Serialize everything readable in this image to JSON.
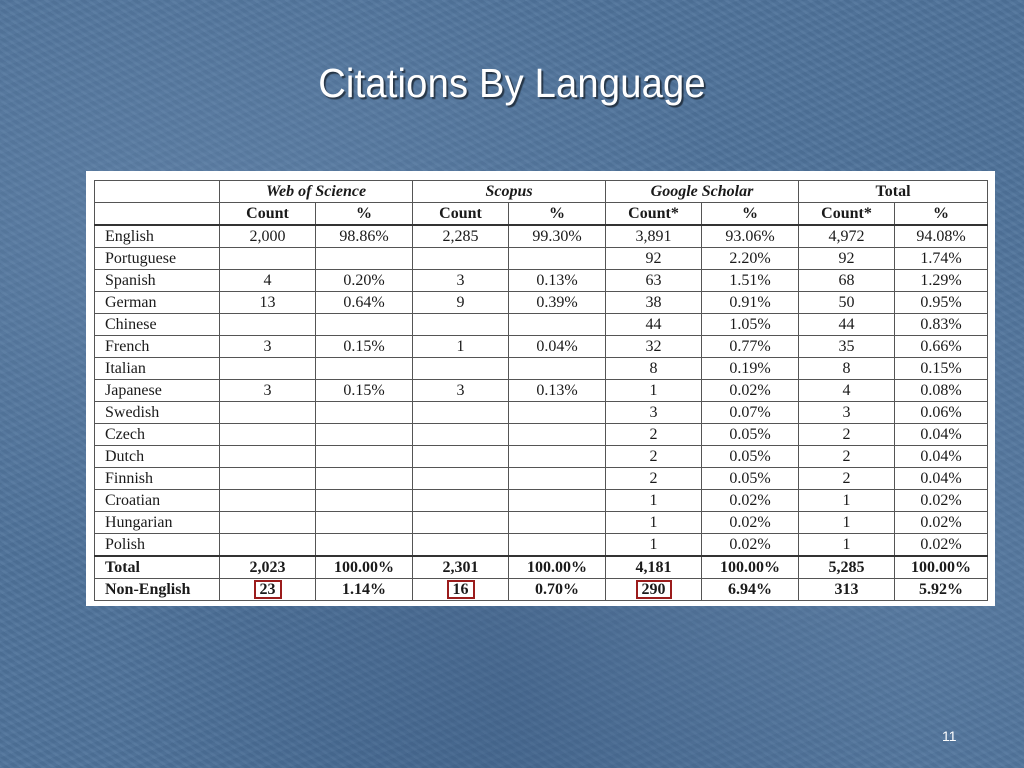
{
  "slide": {
    "title": "Citations By Language",
    "number": "11"
  },
  "table": {
    "groups": [
      "Web of Science",
      "Scopus",
      "Google Scholar",
      "Total"
    ],
    "subheaders": [
      "Count",
      "%",
      "Count",
      "%",
      "Count*",
      "%",
      "Count*",
      "%"
    ],
    "rows": [
      {
        "language": "English",
        "values": [
          "2,000",
          "98.86%",
          "2,285",
          "99.30%",
          "3,891",
          "93.06%",
          "4,972",
          "94.08%"
        ]
      },
      {
        "language": "Portuguese",
        "values": [
          "",
          "",
          "",
          "",
          "92",
          "2.20%",
          "92",
          "1.74%"
        ]
      },
      {
        "language": "Spanish",
        "values": [
          "4",
          "0.20%",
          "3",
          "0.13%",
          "63",
          "1.51%",
          "68",
          "1.29%"
        ]
      },
      {
        "language": "German",
        "values": [
          "13",
          "0.64%",
          "9",
          "0.39%",
          "38",
          "0.91%",
          "50",
          "0.95%"
        ]
      },
      {
        "language": "Chinese",
        "values": [
          "",
          "",
          "",
          "",
          "44",
          "1.05%",
          "44",
          "0.83%"
        ]
      },
      {
        "language": "French",
        "values": [
          "3",
          "0.15%",
          "1",
          "0.04%",
          "32",
          "0.77%",
          "35",
          "0.66%"
        ]
      },
      {
        "language": "Italian",
        "values": [
          "",
          "",
          "",
          "",
          "8",
          "0.19%",
          "8",
          "0.15%"
        ]
      },
      {
        "language": "Japanese",
        "values": [
          "3",
          "0.15%",
          "3",
          "0.13%",
          "1",
          "0.02%",
          "4",
          "0.08%"
        ]
      },
      {
        "language": "Swedish",
        "values": [
          "",
          "",
          "",
          "",
          "3",
          "0.07%",
          "3",
          "0.06%"
        ]
      },
      {
        "language": "Czech",
        "values": [
          "",
          "",
          "",
          "",
          "2",
          "0.05%",
          "2",
          "0.04%"
        ]
      },
      {
        "language": "Dutch",
        "values": [
          "",
          "",
          "",
          "",
          "2",
          "0.05%",
          "2",
          "0.04%"
        ]
      },
      {
        "language": "Finnish",
        "values": [
          "",
          "",
          "",
          "",
          "2",
          "0.05%",
          "2",
          "0.04%"
        ]
      },
      {
        "language": "Croatian",
        "values": [
          "",
          "",
          "",
          "",
          "1",
          "0.02%",
          "1",
          "0.02%"
        ]
      },
      {
        "language": "Hungarian",
        "values": [
          "",
          "",
          "",
          "",
          "1",
          "0.02%",
          "1",
          "0.02%"
        ]
      },
      {
        "language": "Polish",
        "values": [
          "",
          "",
          "",
          "",
          "1",
          "0.02%",
          "1",
          "0.02%"
        ]
      }
    ],
    "total": {
      "label": "Total",
      "values": [
        "2,023",
        "100.00%",
        "2,301",
        "100.00%",
        "4,181",
        "100.00%",
        "5,285",
        "100.00%"
      ]
    },
    "non_english": {
      "label": "Non-English",
      "values": [
        "23",
        "1.14%",
        "16",
        "0.70%",
        "290",
        "6.94%",
        "313",
        "5.92%"
      ]
    },
    "highlight_color": "#9b1c1c"
  }
}
